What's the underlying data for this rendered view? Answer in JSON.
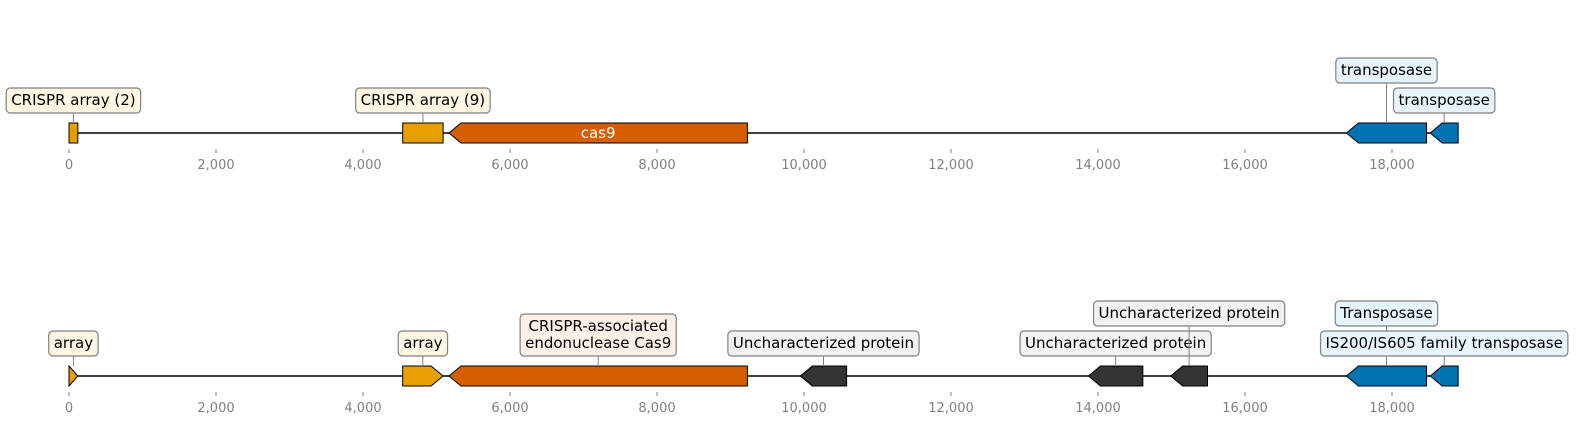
{
  "palette": {
    "crispr": "#e69f00",
    "cas9": "#d55e00",
    "transposase": "#0072b2",
    "hypothetical": "#333333",
    "box_crispr": "#fdf6e3",
    "box_cas9": "#fdf0e6",
    "box_transposase": "#e6f5fc",
    "box_hypothetical": "#f2f2f2",
    "axis_text": "#808080"
  },
  "axis": {
    "min": 0,
    "max": 20000,
    "tick_step": 2000,
    "ticks": [
      "0",
      "2,000",
      "4,000",
      "6,000",
      "8,000",
      "10,000",
      "12,000",
      "14,000",
      "16,000",
      "18,000"
    ]
  },
  "tracks": [
    {
      "name": "track-1",
      "sequence_length": 18900,
      "features": [
        {
          "id": "crispr-array-2",
          "start": 0,
          "end": 120,
          "strand": 0,
          "kind": "crispr",
          "label": "CRISPR array (2)",
          "label_level": 1
        },
        {
          "id": "crispr-array-9",
          "start": 4540,
          "end": 5090,
          "strand": 0,
          "kind": "crispr",
          "label": "CRISPR array (9)",
          "label_level": 1
        },
        {
          "id": "cas9",
          "start": 5170,
          "end": 9230,
          "strand": -1,
          "kind": "cas9",
          "inline_label": "cas9"
        },
        {
          "id": "transposase-1",
          "start": 17380,
          "end": 18470,
          "strand": -1,
          "kind": "transposase",
          "label": "transposase",
          "label_level": 2
        },
        {
          "id": "transposase-2",
          "start": 18520,
          "end": 18900,
          "strand": -1,
          "kind": "transposase",
          "label": "transposase",
          "label_level": 1
        }
      ]
    },
    {
      "name": "track-2",
      "sequence_length": 18900,
      "features": [
        {
          "id": "array-1",
          "start": 0,
          "end": 120,
          "strand": 1,
          "kind": "crispr",
          "label": "array",
          "label_level": 1
        },
        {
          "id": "array-2",
          "start": 4540,
          "end": 5090,
          "strand": 1,
          "kind": "crispr",
          "label": "array",
          "label_level": 1
        },
        {
          "id": "cas9-protein",
          "start": 5170,
          "end": 9230,
          "strand": -1,
          "kind": "cas9",
          "label": "CRISPR-associated\nendonuclease Cas9",
          "label_level": 1
        },
        {
          "id": "uncharacterized-1",
          "start": 9950,
          "end": 10580,
          "strand": -1,
          "kind": "hypothetical",
          "label": "Uncharacterized protein",
          "label_level": 1
        },
        {
          "id": "uncharacterized-2",
          "start": 13870,
          "end": 14610,
          "strand": -1,
          "kind": "hypothetical",
          "label": "Uncharacterized protein",
          "label_level": 1
        },
        {
          "id": "uncharacterized-3",
          "start": 14990,
          "end": 15490,
          "strand": -1,
          "kind": "hypothetical",
          "label": "Uncharacterized protein",
          "label_level": 2
        },
        {
          "id": "transposase-3",
          "start": 17380,
          "end": 18470,
          "strand": -1,
          "kind": "transposase",
          "label": "Transposase",
          "label_level": 2
        },
        {
          "id": "is200-transposase",
          "start": 18520,
          "end": 18900,
          "strand": -1,
          "kind": "transposase",
          "label": "IS200/IS605 family transposase",
          "label_level": 1
        }
      ]
    }
  ]
}
